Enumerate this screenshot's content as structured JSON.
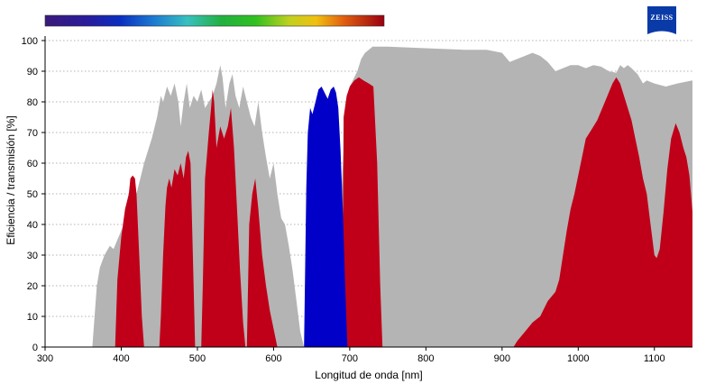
{
  "chart_data": {
    "type": "area",
    "xlabel": "Longitud de onda [nm]",
    "ylabel": "Eficiencia / transmisión [%]",
    "xlim": [
      300,
      1150
    ],
    "ylim": [
      0,
      100
    ],
    "xticks": [
      300,
      400,
      500,
      600,
      700,
      800,
      900,
      1000,
      1100
    ],
    "yticks": [
      0,
      10,
      20,
      30,
      40,
      50,
      60,
      70,
      80,
      90,
      100
    ],
    "grid": "horizontal dotted",
    "legend": "none",
    "logo": "ZEISS",
    "colors": {
      "gray": "#b4b4b4",
      "red": "#c00018",
      "blue": "#0000c8",
      "logo": "#0a3aa8"
    },
    "series": [
      {
        "color_key": "gray",
        "points": [
          [
            362,
            0
          ],
          [
            368,
            20
          ],
          [
            372,
            26
          ],
          [
            378,
            30
          ],
          [
            385,
            33
          ],
          [
            390,
            32
          ],
          [
            395,
            35
          ],
          [
            400,
            38
          ],
          [
            410,
            44
          ],
          [
            420,
            50
          ],
          [
            430,
            60
          ],
          [
            440,
            68
          ],
          [
            447,
            75
          ],
          [
            452,
            82
          ],
          [
            455,
            80
          ],
          [
            460,
            85
          ],
          [
            465,
            82
          ],
          [
            470,
            86
          ],
          [
            475,
            80
          ],
          [
            478,
            72
          ],
          [
            482,
            80
          ],
          [
            486,
            86
          ],
          [
            490,
            78
          ],
          [
            495,
            82
          ],
          [
            500,
            80
          ],
          [
            505,
            84
          ],
          [
            510,
            78
          ],
          [
            515,
            80
          ],
          [
            520,
            82
          ],
          [
            525,
            86
          ],
          [
            530,
            92
          ],
          [
            533,
            88
          ],
          [
            537,
            78
          ],
          [
            542,
            86
          ],
          [
            546,
            89
          ],
          [
            550,
            82
          ],
          [
            555,
            78
          ],
          [
            560,
            85
          ],
          [
            565,
            80
          ],
          [
            570,
            75
          ],
          [
            575,
            72
          ],
          [
            580,
            80
          ],
          [
            585,
            70
          ],
          [
            590,
            62
          ],
          [
            595,
            55
          ],
          [
            600,
            60
          ],
          [
            605,
            50
          ],
          [
            610,
            42
          ],
          [
            615,
            40
          ],
          [
            620,
            33
          ],
          [
            625,
            25
          ],
          [
            630,
            15
          ],
          [
            635,
            5
          ],
          [
            640,
            0
          ],
          [
            680,
            0
          ],
          [
            685,
            30
          ],
          [
            690,
            55
          ],
          [
            695,
            78
          ],
          [
            700,
            85
          ],
          [
            710,
            90
          ],
          [
            715,
            94
          ],
          [
            720,
            96
          ],
          [
            725,
            97
          ],
          [
            730,
            98
          ],
          [
            750,
            98
          ],
          [
            800,
            97.5
          ],
          [
            850,
            97
          ],
          [
            880,
            97
          ],
          [
            900,
            96
          ],
          [
            910,
            93
          ],
          [
            920,
            94
          ],
          [
            940,
            96
          ],
          [
            950,
            95
          ],
          [
            960,
            93
          ],
          [
            970,
            90
          ],
          [
            980,
            91
          ],
          [
            990,
            92
          ],
          [
            1000,
            92
          ],
          [
            1010,
            91
          ],
          [
            1020,
            92
          ],
          [
            1030,
            91.5
          ],
          [
            1040,
            90
          ],
          [
            1050,
            89.5
          ],
          [
            1055,
            92
          ],
          [
            1060,
            91
          ],
          [
            1065,
            92
          ],
          [
            1070,
            91
          ],
          [
            1078,
            89
          ],
          [
            1085,
            86
          ],
          [
            1090,
            87
          ],
          [
            1100,
            86
          ],
          [
            1115,
            85
          ],
          [
            1130,
            86
          ],
          [
            1150,
            87
          ]
        ]
      },
      {
        "color_key": "red",
        "points": [
          [
            392,
            0
          ],
          [
            395,
            22
          ],
          [
            400,
            36
          ],
          [
            405,
            45
          ],
          [
            410,
            50
          ],
          [
            412,
            55
          ],
          [
            415,
            56
          ],
          [
            418,
            55
          ],
          [
            420,
            50
          ],
          [
            424,
            28
          ],
          [
            427,
            10
          ],
          [
            430,
            0
          ],
          [
            450,
            0
          ],
          [
            452,
            10
          ],
          [
            455,
            30
          ],
          [
            458,
            46
          ],
          [
            460,
            52
          ],
          [
            463,
            55
          ],
          [
            466,
            52
          ],
          [
            470,
            58
          ],
          [
            474,
            56
          ],
          [
            478,
            60
          ],
          [
            482,
            55
          ],
          [
            485,
            62
          ],
          [
            488,
            64
          ],
          [
            491,
            60
          ],
          [
            494,
            30
          ],
          [
            497,
            0
          ],
          [
            505,
            0
          ],
          [
            507,
            20
          ],
          [
            510,
            55
          ],
          [
            515,
            70
          ],
          [
            518,
            78
          ],
          [
            520,
            84
          ],
          [
            522,
            80
          ],
          [
            525,
            65
          ],
          [
            530,
            72
          ],
          [
            535,
            68
          ],
          [
            540,
            72
          ],
          [
            544,
            78
          ],
          [
            548,
            65
          ],
          [
            552,
            45
          ],
          [
            556,
            25
          ],
          [
            560,
            8
          ],
          [
            563,
            0
          ],
          [
            565,
            0
          ],
          [
            568,
            40
          ],
          [
            572,
            50
          ],
          [
            576,
            55
          ],
          [
            580,
            45
          ],
          [
            585,
            30
          ],
          [
            590,
            20
          ],
          [
            595,
            12
          ],
          [
            600,
            6
          ],
          [
            605,
            0
          ],
          [
            690,
            0
          ],
          [
            692,
            75
          ],
          [
            696,
            82
          ],
          [
            700,
            85
          ],
          [
            706,
            87
          ],
          [
            712,
            88
          ],
          [
            718,
            87
          ],
          [
            725,
            86
          ],
          [
            731,
            85
          ],
          [
            736,
            60
          ],
          [
            740,
            20
          ],
          [
            743,
            0
          ],
          [
            915,
            0
          ],
          [
            920,
            2
          ],
          [
            930,
            5
          ],
          [
            940,
            8
          ],
          [
            950,
            10
          ],
          [
            960,
            15
          ],
          [
            970,
            18
          ],
          [
            975,
            22
          ],
          [
            980,
            30
          ],
          [
            985,
            38
          ],
          [
            990,
            45
          ],
          [
            995,
            50
          ],
          [
            1000,
            56
          ],
          [
            1005,
            62
          ],
          [
            1010,
            68
          ],
          [
            1015,
            70
          ],
          [
            1020,
            72
          ],
          [
            1025,
            74
          ],
          [
            1030,
            77
          ],
          [
            1035,
            80
          ],
          [
            1040,
            83
          ],
          [
            1045,
            86
          ],
          [
            1050,
            88
          ],
          [
            1055,
            86
          ],
          [
            1060,
            82
          ],
          [
            1065,
            78
          ],
          [
            1070,
            74
          ],
          [
            1075,
            68
          ],
          [
            1080,
            62
          ],
          [
            1085,
            55
          ],
          [
            1090,
            50
          ],
          [
            1095,
            40
          ],
          [
            1100,
            30
          ],
          [
            1103,
            29
          ],
          [
            1107,
            32
          ],
          [
            1112,
            44
          ],
          [
            1117,
            58
          ],
          [
            1122,
            68
          ],
          [
            1128,
            73
          ],
          [
            1133,
            70
          ],
          [
            1138,
            65
          ],
          [
            1142,
            62
          ],
          [
            1146,
            56
          ],
          [
            1150,
            44
          ]
        ]
      },
      {
        "color_key": "blue",
        "points": [
          [
            640,
            0
          ],
          [
            643,
            52
          ],
          [
            645,
            70
          ],
          [
            648,
            78
          ],
          [
            651,
            76
          ],
          [
            655,
            80
          ],
          [
            659,
            84
          ],
          [
            663,
            85
          ],
          [
            667,
            83
          ],
          [
            671,
            81
          ],
          [
            675,
            84
          ],
          [
            679,
            85
          ],
          [
            682,
            83
          ],
          [
            685,
            78
          ],
          [
            688,
            64
          ],
          [
            691,
            44
          ],
          [
            694,
            20
          ],
          [
            697,
            0
          ]
        ]
      }
    ]
  }
}
